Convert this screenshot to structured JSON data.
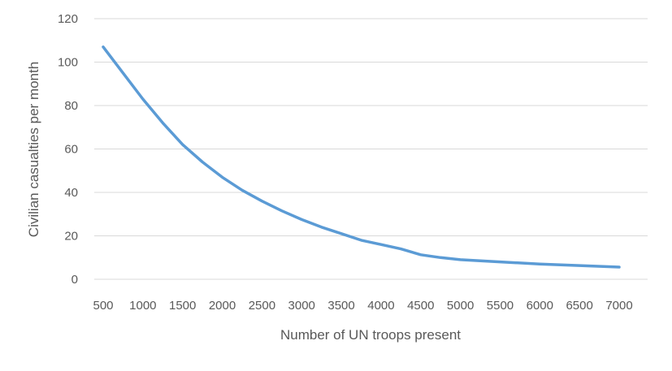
{
  "chart_data": {
    "type": "line",
    "title": "",
    "xlabel": "Number of UN troops present",
    "ylabel": "Civilian casualties per month",
    "x": [
      500,
      750,
      1000,
      1250,
      1500,
      1750,
      2000,
      2250,
      2500,
      2750,
      3000,
      3250,
      3500,
      3750,
      4000,
      4250,
      4500,
      4750,
      5000,
      5500,
      6000,
      6500,
      7000
    ],
    "x_ticks": [
      "500",
      "1000",
      "1500",
      "2000",
      "2500",
      "3000",
      "3500",
      "4000",
      "4500",
      "5000",
      "5500",
      "6000",
      "6500",
      "7000"
    ],
    "y_ticks": [
      "0",
      "20",
      "40",
      "60",
      "80",
      "100",
      "120"
    ],
    "ylim": [
      0,
      120
    ],
    "grid": true,
    "legend": "none",
    "series": [
      {
        "color": "#5b9bd5",
        "values": [
          107,
          95,
          83,
          72,
          62,
          54,
          47,
          41,
          36,
          31.5,
          27.5,
          24,
          21,
          18,
          16,
          14,
          11.3,
          10,
          9,
          8,
          7,
          6.3,
          5.6
        ]
      }
    ]
  }
}
